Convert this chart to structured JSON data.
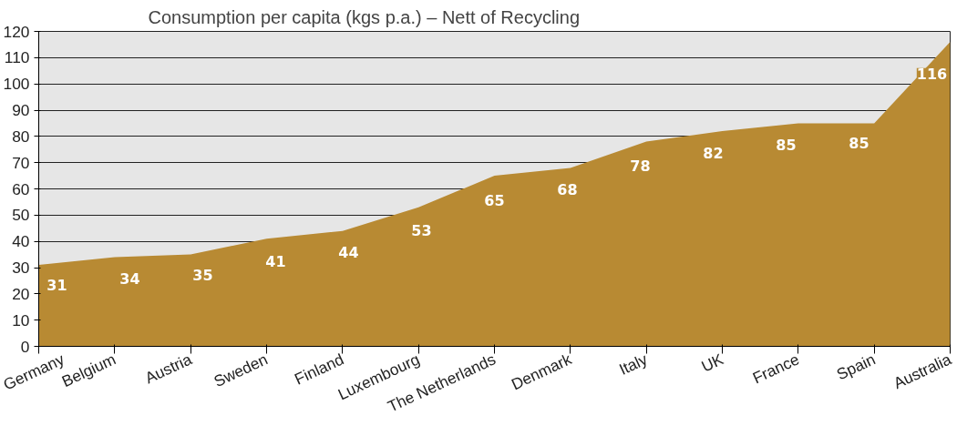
{
  "chart_data": {
    "type": "area",
    "title": "Consumption per capita (kgs p.a.) – Nett of Recycling",
    "categories": [
      "Germany",
      "Belgium",
      "Austria",
      "Sweden",
      "Finland",
      "Luxembourg",
      "The Netherlands",
      "Denmark",
      "Italy",
      "UK",
      "France",
      "Spain",
      "Australia"
    ],
    "series": [
      {
        "color": "#b88a33",
        "values": [
          31,
          34,
          35,
          41,
          44,
          53,
          65,
          68,
          78,
          82,
          85,
          85,
          116
        ]
      }
    ],
    "ylim": [
      0,
      120
    ],
    "yticks": [
      0,
      10,
      20,
      30,
      40,
      50,
      60,
      70,
      80,
      90,
      100,
      110,
      120
    ],
    "grid": "y",
    "data_labels": true
  }
}
